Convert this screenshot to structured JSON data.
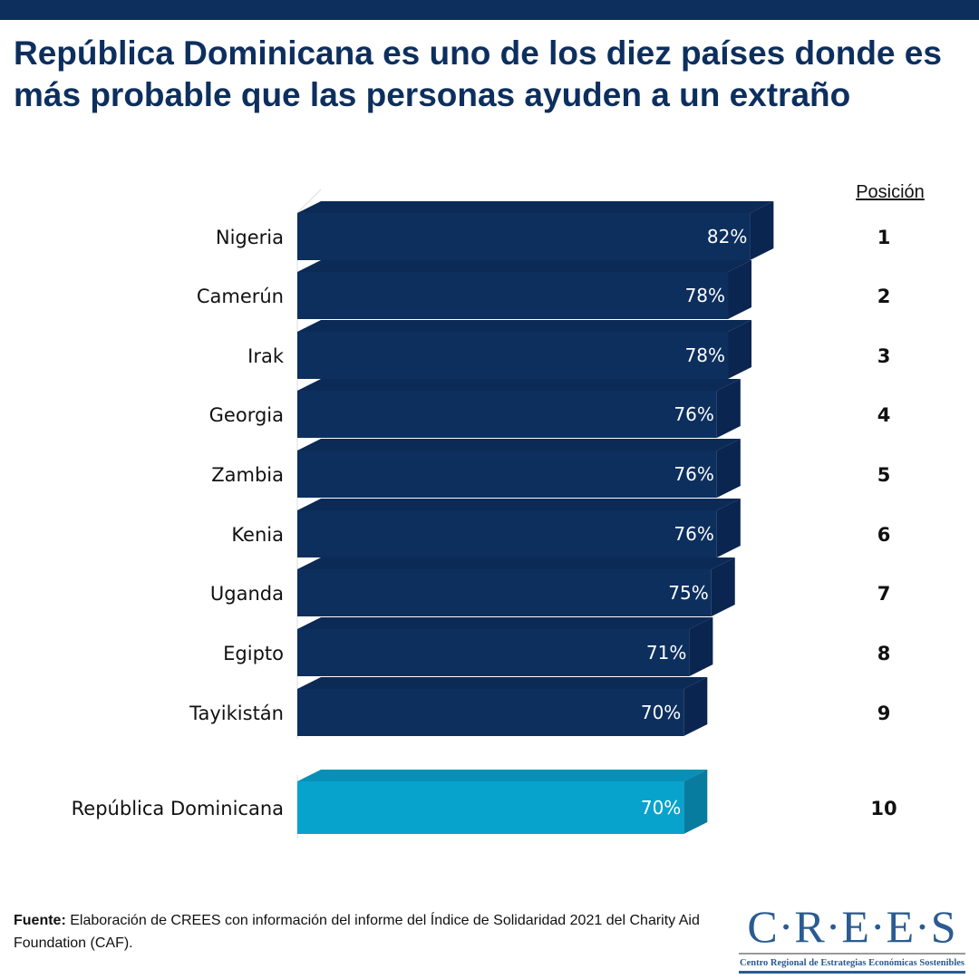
{
  "title": "República Dominicana es uno de los diez países donde es más probable que las personas ayuden a un extraño",
  "chart_data": {
    "type": "bar",
    "orientation": "horizontal",
    "style": "3d",
    "categories": [
      "Nigeria",
      "Camerún",
      "Irak",
      "Georgia",
      "Zambia",
      "Kenia",
      "Uganda",
      "Egipto",
      "Tayikistán",
      "República Dominicana"
    ],
    "values": [
      82,
      78,
      78,
      76,
      76,
      76,
      75,
      71,
      70,
      70
    ],
    "value_labels": [
      "82%",
      "78%",
      "78%",
      "76%",
      "76%",
      "76%",
      "75%",
      "71%",
      "70%",
      "70%"
    ],
    "rank_header": "Posición",
    "ranks": [
      "1",
      "2",
      "3",
      "4",
      "5",
      "6",
      "7",
      "8",
      "9",
      "10"
    ],
    "highlight": "República Dominicana",
    "colors": {
      "default": "#0d2f5e",
      "highlight": "#08a3cc"
    }
  },
  "footer": {
    "source_label": "Fuente:",
    "source_text": " Elaboración de CREES con información del informe del Índice de Solidaridad  2021 del Charity Aid Foundation (CAF)."
  },
  "logo": {
    "main": "C·R·E·E·S",
    "sub": "Centro Regional de Estrategias Económicas Sostenibles"
  }
}
